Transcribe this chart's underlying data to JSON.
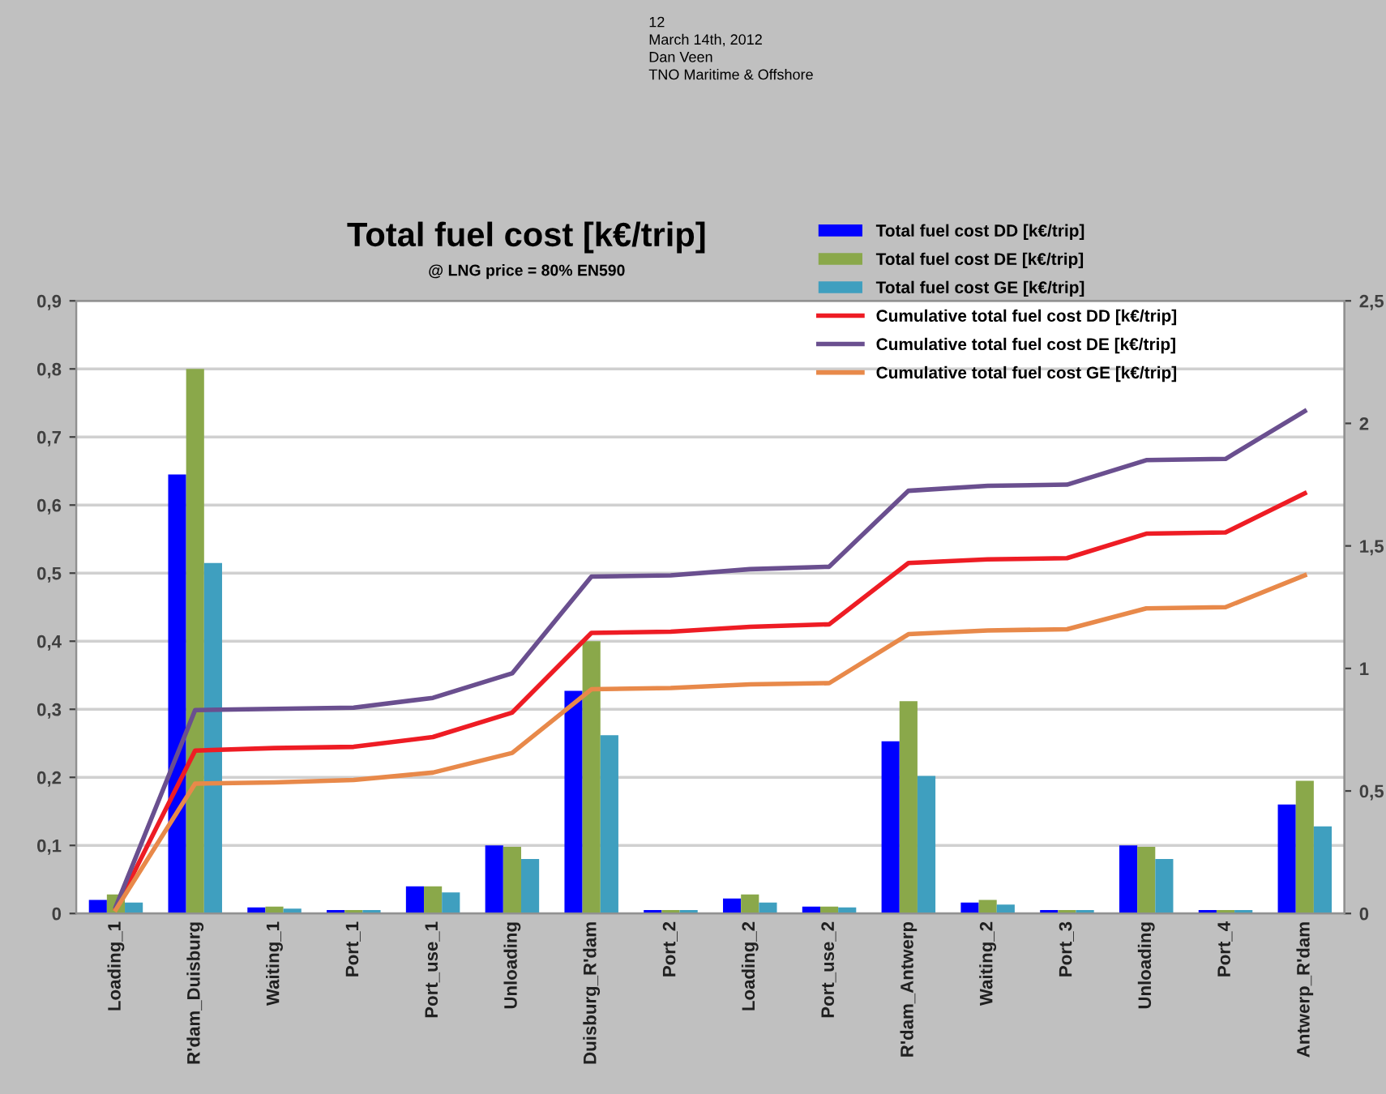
{
  "chart_data": {
    "type": "bar",
    "title": "Total fuel cost [k€/trip]",
    "subtitle": "@ LNG price = 80% EN590",
    "annotations": [
      "12",
      "March 14th, 2012",
      "Dan Veen",
      "TNO Maritime & Offshore"
    ],
    "categories": [
      "Loading_1",
      "R'dam_Duisburg",
      "Waiting_1",
      "Port_1",
      "Port_use_1",
      "Unloading",
      "Duisburg_R'dam",
      "Port_2",
      "Loading_2",
      "Port_use_2",
      "R'dam_Antwerp",
      "Waiting_2",
      "Port_3",
      "Unloading",
      "Port_4",
      "Antwerp_R'dam"
    ],
    "series": [
      {
        "name": "Total fuel cost DD [k€/trip]",
        "color": "#0000ff",
        "values": [
          0.02,
          0.645,
          0.009,
          0.005,
          0.04,
          0.1,
          0.327,
          0.005,
          0.022,
          0.01,
          0.253,
          0.016,
          0.005,
          0.1,
          0.005,
          0.16
        ]
      },
      {
        "name": "Total fuel cost DE [k€/trip]",
        "color": "#8aa84a",
        "values": [
          0.028,
          0.8,
          0.01,
          0.005,
          0.04,
          0.098,
          0.4,
          0.005,
          0.028,
          0.01,
          0.312,
          0.02,
          0.005,
          0.098,
          0.005,
          0.195
        ]
      },
      {
        "name": "Total fuel cost GE [k€/trip]",
        "color": "#3f9fbf",
        "values": [
          0.016,
          0.515,
          0.007,
          0.005,
          0.031,
          0.08,
          0.262,
          0.005,
          0.016,
          0.009,
          0.202,
          0.013,
          0.005,
          0.08,
          0.005,
          0.128
        ]
      },
      {
        "name": "Cumulative total fuel cost DD [k€/trip]",
        "type": "line",
        "axis": "y2",
        "color": "#ee1c24",
        "values": [
          0.02,
          0.665,
          0.675,
          0.68,
          0.72,
          0.82,
          1.145,
          1.15,
          1.17,
          1.18,
          1.43,
          1.445,
          1.45,
          1.55,
          1.555,
          1.715
        ]
      },
      {
        "name": "Cumulative total fuel cost DE [k€/trip]",
        "type": "line",
        "axis": "y2",
        "color": "#6a4f8f",
        "values": [
          0.028,
          0.83,
          0.835,
          0.84,
          0.88,
          0.98,
          1.375,
          1.38,
          1.405,
          1.415,
          1.725,
          1.745,
          1.75,
          1.85,
          1.855,
          2.05
        ]
      },
      {
        "name": "Cumulative total fuel cost GE [k€/trip]",
        "type": "line",
        "axis": "y2",
        "color": "#e8894a",
        "values": [
          0.016,
          0.53,
          0.535,
          0.545,
          0.575,
          0.655,
          0.915,
          0.92,
          0.935,
          0.94,
          1.14,
          1.155,
          1.16,
          1.245,
          1.25,
          1.38
        ]
      }
    ],
    "ylim": [
      0,
      0.9
    ],
    "yticks": [
      {
        "value": 0,
        "label": "0"
      },
      {
        "value": 0.1,
        "label": "0,1"
      },
      {
        "value": 0.2,
        "label": "0,2"
      },
      {
        "value": 0.3,
        "label": "0,3"
      },
      {
        "value": 0.4,
        "label": "0,4"
      },
      {
        "value": 0.5,
        "label": "0,5"
      },
      {
        "value": 0.6,
        "label": "0,6"
      },
      {
        "value": 0.7,
        "label": "0,7"
      },
      {
        "value": 0.8,
        "label": "0,8"
      },
      {
        "value": 0.9,
        "label": "0,9"
      }
    ],
    "y2lim": [
      0,
      2.5
    ],
    "y2ticks": [
      {
        "value": 0,
        "label": "0"
      },
      {
        "value": 0.5,
        "label": "0,5"
      },
      {
        "value": 1,
        "label": "1"
      },
      {
        "value": 1.5,
        "label": "1,5"
      },
      {
        "value": 2,
        "label": "2"
      },
      {
        "value": 2.5,
        "label": "2,5"
      }
    ],
    "grid": "y",
    "legend": "top right",
    "marker": "none",
    "line_style": "solid"
  }
}
